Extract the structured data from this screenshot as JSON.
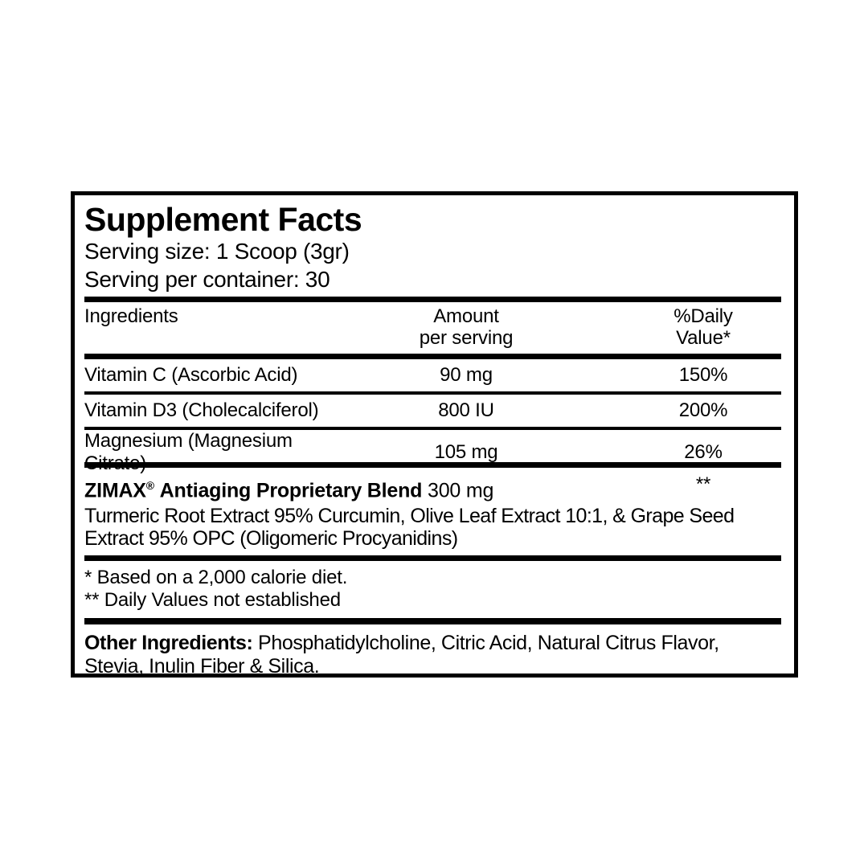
{
  "page": {
    "background_color": "#ffffff",
    "text_color": "#000000",
    "border_color": "#000000"
  },
  "label": {
    "title": "Supplement Facts",
    "serving_size": "Serving size: 1 Scoop (3gr)",
    "servings_per_container": "Serving per container: 30",
    "table": {
      "headers": {
        "ingredients": "Ingredients",
        "amount_line1": "Amount",
        "amount_line2": "per serving",
        "daily_line1": "%Daily",
        "daily_line2": "Value*"
      },
      "rows": [
        {
          "name": "Vitamin C (Ascorbic Acid)",
          "amount": "90 mg",
          "daily_value": "150%"
        },
        {
          "name": "Vitamin D3 (Cholecalciferol)",
          "amount": "800 IU",
          "daily_value": "200%"
        },
        {
          "name": "Magnesium (Magnesium Citrate)",
          "amount": "105 mg",
          "daily_value": "26%"
        }
      ]
    },
    "blend": {
      "name": "ZIMAX",
      "registered_mark": "®",
      "name_rest": "Antiaging Proprietary Blend",
      "amount": "300 mg",
      "daily_value": "**",
      "description_line1": "Turmeric Root Extract 95% Curcumin, Olive Leaf Extract 10:1, & Grape Seed",
      "description_line2": "Extract 95% OPC (Oligomeric Procyanidins)"
    },
    "footnotes": {
      "line1": "* Based on a 2,000 calorie diet.",
      "line2": "** Daily Values not established"
    },
    "other_ingredients": {
      "prefix": "Other Ingredients:",
      "text": "Phosphatidylcholine, Citric Acid, Natural Citrus Flavor, Stevia, Inulin Fiber & Silica."
    }
  }
}
